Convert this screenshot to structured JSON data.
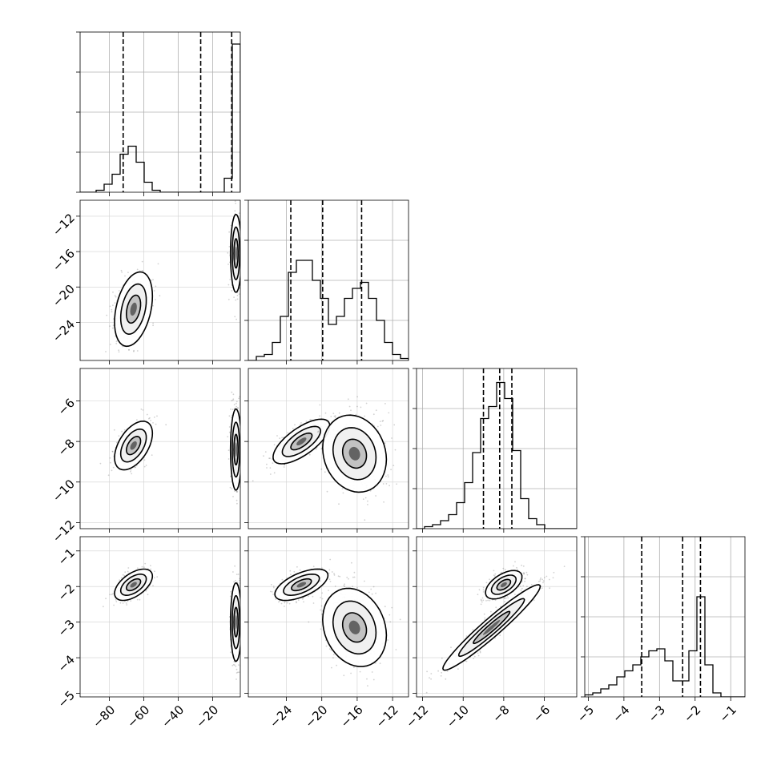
{
  "chart_data": {
    "type": "corner",
    "grid": true,
    "params": [
      {
        "range": [
          -97,
          -4
        ],
        "ticks": [
          -80,
          -60,
          -40,
          -20
        ],
        "tick_labels": [
          "−80",
          "−60",
          "−40",
          "−20"
        ]
      },
      {
        "range": [
          -28.3,
          -10.2
        ],
        "ticks": [
          -24,
          -20,
          -16,
          -12
        ],
        "tick_labels": [
          "−24",
          "−20",
          "−16",
          "−12"
        ]
      },
      {
        "range": [
          -12.3,
          -4.4
        ],
        "ticks": [
          -12,
          -10,
          -8,
          -6
        ],
        "tick_labels": [
          "−12",
          "−10",
          "−8",
          "−6"
        ]
      },
      {
        "range": [
          -5.1,
          -0.6
        ],
        "ticks": [
          -5,
          -4,
          -3,
          -2,
          -1
        ],
        "tick_labels": [
          "−5",
          "−4",
          "−3",
          "−2",
          "−1"
        ]
      }
    ],
    "histograms": [
      {
        "param": 0,
        "bin_edges": [
          -97.0,
          -92.35,
          -87.7,
          -83.05,
          -78.4,
          -73.75,
          -69.1,
          -64.45,
          -59.8,
          -55.15,
          -50.5,
          -45.85,
          -41.2,
          -36.55,
          -31.9,
          -27.25,
          -22.6,
          -17.95,
          -13.3,
          -8.65,
          -4.0
        ],
        "counts": [
          0,
          0,
          1,
          4,
          9,
          19,
          23,
          15,
          5,
          1,
          0,
          0,
          0,
          0,
          0,
          0,
          0,
          0,
          7,
          74
        ],
        "quantiles": [
          -72,
          -27,
          -9
        ]
      },
      {
        "param": 1,
        "bin_edges": [
          -28.3,
          -27.395,
          -26.49,
          -25.585,
          -24.68,
          -23.775,
          -22.87,
          -21.965,
          -21.06,
          -20.155,
          -19.25,
          -18.345,
          -17.44,
          -16.535,
          -15.63,
          -14.725,
          -13.82,
          -12.915,
          -12.01,
          -11.105,
          -10.2
        ],
        "counts": [
          0,
          2,
          3,
          9,
          22,
          44,
          50,
          50,
          40,
          31,
          18,
          22,
          31,
          36,
          39,
          31,
          20,
          9,
          3,
          1
        ],
        "quantiles": [
          -23.5,
          -19.9,
          -15.5
        ]
      },
      {
        "param": 2,
        "bin_edges": [
          -12.3,
          -11.905,
          -11.51,
          -11.115,
          -10.72,
          -10.325,
          -9.93,
          -9.535,
          -9.14,
          -8.745,
          -8.35,
          -7.955,
          -7.56,
          -7.165,
          -6.77,
          -6.375,
          -5.98,
          -5.585,
          -5.19,
          -4.795,
          -4.4
        ],
        "counts": [
          0,
          1,
          2,
          4,
          7,
          13,
          23,
          38,
          55,
          61,
          73,
          65,
          39,
          15,
          5,
          2,
          0,
          0,
          0,
          0
        ],
        "quantiles": [
          -9.0,
          -8.2,
          -7.6
        ]
      },
      {
        "param": 3,
        "bin_edges": [
          -5.1,
          -4.875,
          -4.65,
          -4.425,
          -4.2,
          -3.975,
          -3.75,
          -3.525,
          -3.3,
          -3.075,
          -2.85,
          -2.625,
          -2.4,
          -2.175,
          -1.95,
          -1.725,
          -1.5,
          -1.275,
          -1.05,
          -0.825,
          -0.6
        ],
        "counts": [
          1,
          2,
          4,
          6,
          10,
          13,
          16,
          20,
          23,
          24,
          18,
          8,
          8,
          23,
          50,
          16,
          2,
          0,
          0,
          0
        ],
        "quantiles": [
          -3.5,
          -2.35,
          -1.85
        ]
      }
    ],
    "hist_ylim": [
      0,
      80
    ],
    "hist_yticks": [
      20,
      40,
      60
    ],
    "scatter_panels": [
      {
        "x_param": 0,
        "y_param": 1,
        "clusters": [
          {
            "center": [
              -66,
              -22.5
            ],
            "sd": [
              5.5,
              2.1
            ],
            "rho": 0.35,
            "n": 420
          },
          {
            "center": [
              -6.5,
              -16.2
            ],
            "sd": [
              1.6,
              2.2
            ],
            "rho": 0.0,
            "n": 420
          }
        ]
      },
      {
        "x_param": 0,
        "y_param": 2,
        "clusters": [
          {
            "center": [
              -66,
              -8.2
            ],
            "sd": [
              5.5,
              0.6
            ],
            "rho": 0.5,
            "n": 420
          },
          {
            "center": [
              -6.5,
              -8.4
            ],
            "sd": [
              1.6,
              1.0
            ],
            "rho": 0.0,
            "n": 420
          }
        ]
      },
      {
        "x_param": 1,
        "y_param": 2,
        "clusters": [
          {
            "center": [
              -22.3,
              -8.0
            ],
            "sd": [
              1.6,
              0.55
            ],
            "rho": 0.7,
            "n": 420
          },
          {
            "center": [
              -16.3,
              -8.6
            ],
            "sd": [
              1.8,
              0.95
            ],
            "rho": -0.15,
            "n": 420
          }
        ]
      },
      {
        "x_param": 0,
        "y_param": 3,
        "clusters": [
          {
            "center": [
              -66,
              -1.95
            ],
            "sd": [
              5.5,
              0.22
            ],
            "rho": 0.55,
            "n": 420
          },
          {
            "center": [
              -6.5,
              -3.0
            ],
            "sd": [
              1.6,
              0.55
            ],
            "rho": 0.0,
            "n": 420
          }
        ]
      },
      {
        "x_param": 1,
        "y_param": 3,
        "clusters": [
          {
            "center": [
              -22.3,
              -1.95
            ],
            "sd": [
              1.5,
              0.22
            ],
            "rho": 0.6,
            "n": 420
          },
          {
            "center": [
              -16.3,
              -3.15
            ],
            "sd": [
              1.8,
              0.55
            ],
            "rho": -0.2,
            "n": 420
          }
        ]
      },
      {
        "x_param": 2,
        "y_param": 3,
        "clusters": [
          {
            "center": [
              -8.0,
              -1.95
            ],
            "sd": [
              0.45,
              0.2
            ],
            "rho": 0.55,
            "n": 420
          },
          {
            "center": [
              -8.6,
              -3.15
            ],
            "sd": [
              1.2,
              0.6
            ],
            "rho": 0.96,
            "n": 420
          }
        ]
      }
    ]
  }
}
